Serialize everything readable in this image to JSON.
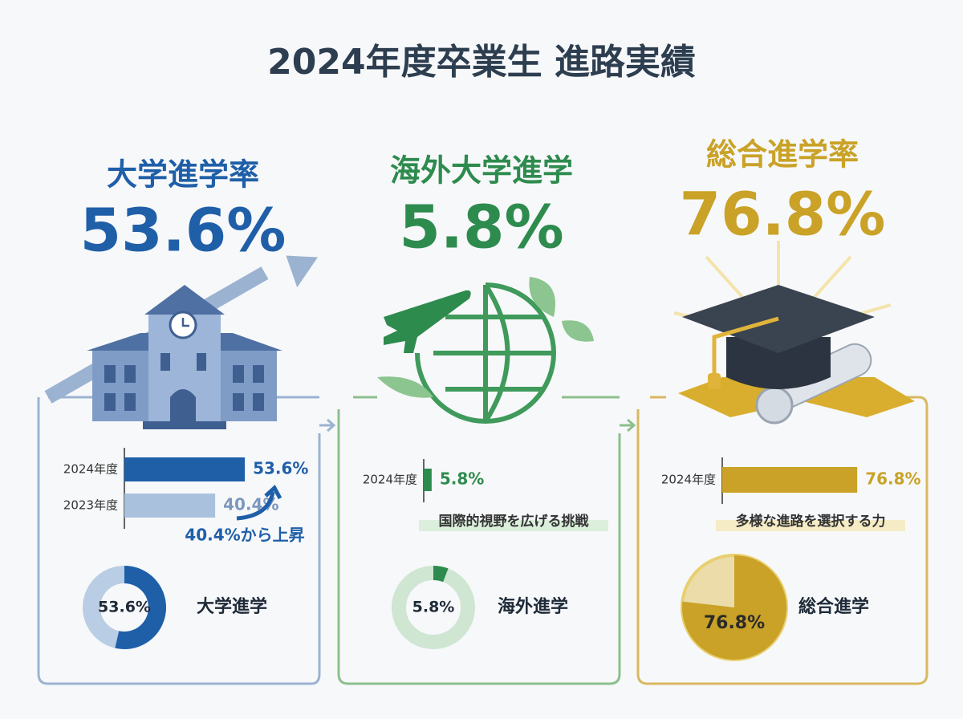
{
  "title": "2024年度卒業生 進路実績",
  "chart_data": [
    {
      "type": "bar",
      "title": "大学進学率",
      "headline": {
        "value": 53.6,
        "label": "53.6%"
      },
      "categories": [
        "2024年度",
        "2023年度"
      ],
      "values": [
        53.6,
        40.4
      ],
      "value_labels": [
        "53.6%",
        "40.4%"
      ],
      "xlim": [
        0,
        100
      ],
      "colors": [
        "#1f5fa8",
        "#a9c1dd"
      ],
      "annotation": "40.4%から上昇"
    },
    {
      "type": "donut",
      "categories": [
        "大学進学"
      ],
      "values": [
        53.6
      ],
      "value_labels": [
        "53.6%"
      ],
      "total": 100,
      "colors": [
        "#1f5fa8",
        "#b9cde4"
      ]
    },
    {
      "type": "bar",
      "title": "海外大学進学",
      "headline": {
        "value": 5.8,
        "label": "5.8%"
      },
      "categories": [
        "2024年度"
      ],
      "values": [
        5.8
      ],
      "value_labels": [
        "5.8%"
      ],
      "xlim": [
        0,
        100
      ],
      "colors": [
        "#2e8b4e"
      ],
      "annotation": "国際的視野を広げる挑戦"
    },
    {
      "type": "donut",
      "categories": [
        "海外進学"
      ],
      "values": [
        5.8
      ],
      "value_labels": [
        "5.8%"
      ],
      "total": 100,
      "colors": [
        "#2e8b4e",
        "#cfe6d2"
      ]
    },
    {
      "type": "bar",
      "title": "総合進学率",
      "headline": {
        "value": 76.8,
        "label": "76.8%"
      },
      "categories": [
        "2024年度"
      ],
      "values": [
        76.8
      ],
      "value_labels": [
        "76.8%"
      ],
      "xlim": [
        0,
        100
      ],
      "colors": [
        "#c9a227"
      ],
      "annotation": "多様な進路を選択する力"
    },
    {
      "type": "pie",
      "categories": [
        "総合進学"
      ],
      "values": [
        76.8
      ],
      "value_labels": [
        "76.8%"
      ],
      "total": 100,
      "colors": [
        "#c9a227",
        "#ecdcaa"
      ]
    }
  ]
}
